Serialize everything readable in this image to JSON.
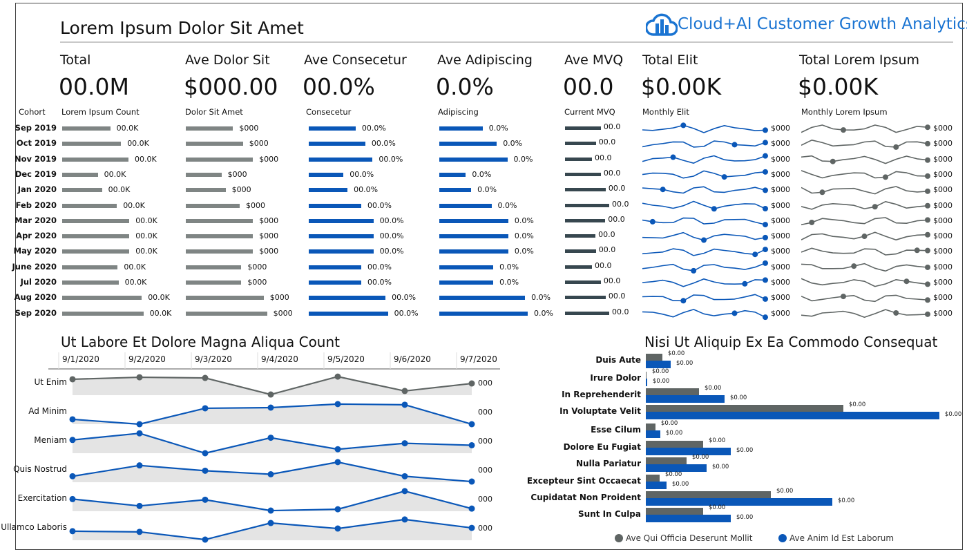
{
  "header": {
    "title": "Lorem Ipsum Dolor Sit Amet",
    "brand": "Cloud+AI Customer Growth Analytics",
    "logo_icon": "cloud-bar-chart-icon",
    "brand_color": "#1a74d2"
  },
  "kpis": [
    {
      "label": "Total",
      "value": "00.0M"
    },
    {
      "label": "Ave Dolor Sit",
      "value": "$000.00"
    },
    {
      "label": "Ave Consecetur",
      "value": "00.0%"
    },
    {
      "label": "Ave Adipiscing",
      "value": "0.0%"
    },
    {
      "label": "Ave MVQ",
      "value": "00.0"
    },
    {
      "label": "Total Elit",
      "value": "$0.00K"
    },
    {
      "label": "Total Lorem Ipsum",
      "value": "$0.00K"
    }
  ],
  "cohort_table": {
    "cohort_header": "Cohort",
    "cohorts": [
      "Sep 2019",
      "Oct 2019",
      "Nov 2019",
      "Dec 2019",
      "Jan 2020",
      "Feb 2020",
      "Mar 2020",
      "Apr 2020",
      "May 2020",
      "June 2020",
      "Jul 2020",
      "Aug 2020",
      "Sep 2020"
    ],
    "columns": [
      {
        "header": "Lorem Ipsum Count",
        "color": "#7f8584",
        "label": "00.0K",
        "values": [
          0.58,
          0.71,
          0.8,
          0.43,
          0.48,
          0.66,
          0.81,
          0.81,
          0.81,
          0.67,
          0.68,
          0.96,
          0.98
        ]
      },
      {
        "header": "Dolor Sit Amet",
        "color": "#7f8584",
        "label": "$000",
        "values": [
          0.57,
          0.69,
          0.81,
          0.43,
          0.48,
          0.65,
          0.81,
          0.81,
          0.81,
          0.67,
          0.67,
          0.94,
          0.98
        ]
      },
      {
        "header": "Consecetur",
        "color": "#0a57b8",
        "label": "00.0%",
        "values": [
          0.58,
          0.7,
          0.79,
          0.43,
          0.48,
          0.65,
          0.8,
          0.8,
          0.8,
          0.65,
          0.65,
          0.95,
          0.98
        ]
      },
      {
        "header": "Adipiscing",
        "color": "#0a57b8",
        "label": "0.0%",
        "values": [
          0.49,
          0.65,
          0.77,
          0.3,
          0.36,
          0.59,
          0.78,
          0.78,
          0.78,
          0.61,
          0.61,
          0.97,
          1.0
        ]
      },
      {
        "header": "Current MVQ",
        "color": "#37474f",
        "label": "00.0",
        "values": [
          0.81,
          0.7,
          0.61,
          0.81,
          0.92,
          1.0,
          0.91,
          0.69,
          0.7,
          0.61,
          0.81,
          0.92,
          1.0
        ]
      }
    ],
    "sparklines": [
      {
        "header": "Monthly Elit",
        "color": "#0a57b8",
        "label": "$000"
      },
      {
        "header": "Monthly Lorem Ipsum",
        "color": "#5f6564",
        "label": "$000"
      }
    ]
  },
  "line_panel": {
    "title": "Ut Labore Et Dolore Magna Aliqua Count",
    "dates": [
      "9/1/2020",
      "9/2/2020",
      "9/3/2020",
      "9/4/2020",
      "9/5/2020",
      "9/6/2020",
      "9/7/2020"
    ],
    "rows": [
      {
        "label": "Ut Enim",
        "color": "#5f6564",
        "end_label": "000",
        "values": [
          0.72,
          0.81,
          0.78,
          0.03,
          0.84,
          0.19,
          0.53
        ]
      },
      {
        "label": "Ad Minim",
        "color": "#0a57b8",
        "end_label": "000",
        "values": [
          0.22,
          0.0,
          0.72,
          0.75,
          0.91,
          0.88,
          0.0
        ]
      },
      {
        "label": "Meniam",
        "color": "#0a57b8",
        "end_label": "000",
        "values": [
          0.6,
          0.9,
          0.0,
          0.7,
          0.18,
          0.45,
          0.36
        ]
      },
      {
        "label": "Quis Nostrud",
        "color": "#0a57b8",
        "end_label": "000",
        "values": [
          0.27,
          0.76,
          0.52,
          0.36,
          0.91,
          0.27,
          0.03
        ]
      },
      {
        "label": "Exercitation",
        "color": "#0a57b8",
        "end_label": "000",
        "values": [
          0.55,
          0.24,
          0.52,
          0.03,
          0.09,
          0.91,
          0.12
        ]
      },
      {
        "label": "Ullamco Laboris",
        "color": "#0a57b8",
        "end_label": "000",
        "values": [
          0.41,
          0.38,
          0.03,
          0.78,
          0.53,
          0.94,
          0.56
        ]
      }
    ]
  },
  "bar_panel": {
    "title": "Nisi Ut Aliquip Ex Ea Commodo Consequat",
    "legend": [
      {
        "name": "Ave Qui Officia Deserunt Mollit",
        "color": "#5f6564"
      },
      {
        "name": "Ave Anim Id Est Laborum",
        "color": "#0a57b8"
      }
    ],
    "categories": [
      "Duis Aute",
      "Irure Dolor",
      "In Reprehenderit",
      "In Voluptate Velit",
      "Esse Cilum",
      "Dolore Eu Fugiat",
      "Nulla Pariatur",
      "Excepteur Sint Occaecat",
      "Cupidatat Non Proident",
      "Sunt In Culpa"
    ],
    "grey": [
      24,
      1,
      77,
      286,
      14,
      83,
      59,
      20,
      181,
      83
    ],
    "blue": [
      36,
      2,
      114,
      425,
      21,
      123,
      88,
      30,
      270,
      123
    ],
    "max": 425,
    "label": "$0.00"
  }
}
